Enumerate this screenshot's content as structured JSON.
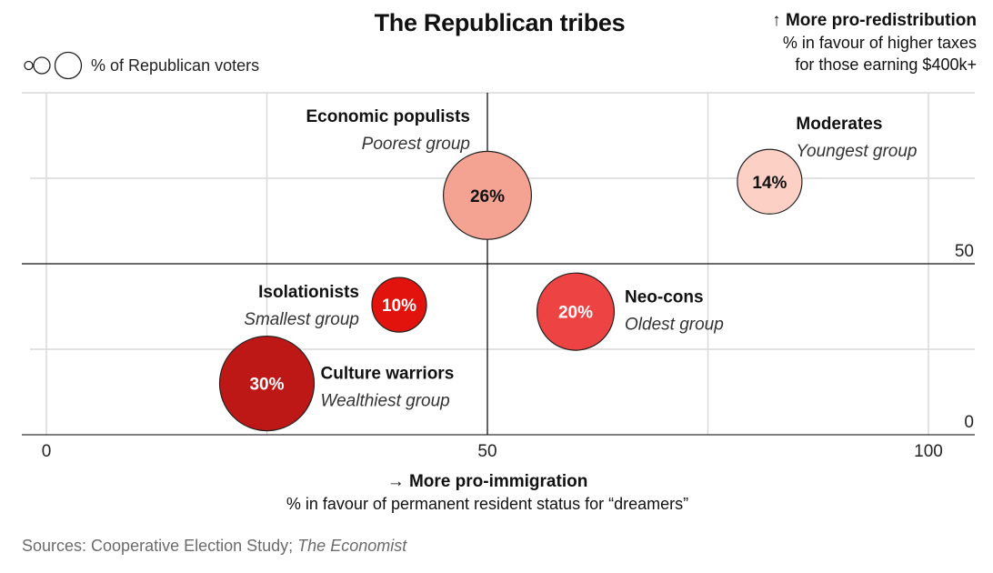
{
  "chart_data": {
    "type": "scatter",
    "title": "The Republican tribes",
    "size_legend": "% of Republican voters",
    "x_axis": {
      "title": "More pro-immigration",
      "subtitle": "% in favour of permanent resident status for “dreamers”",
      "range": [
        0,
        100
      ],
      "ticks": [
        "0",
        "50",
        "100"
      ]
    },
    "y_axis": {
      "title": "More pro-redistribution",
      "subtitle_line1": "% in favour of higher taxes",
      "subtitle_line2": "for those earning $400k+",
      "range": [
        0,
        100
      ],
      "ticks": [
        "0",
        "50"
      ]
    },
    "reference_lines": {
      "x": 50,
      "y": 50
    },
    "grid": true,
    "points": [
      {
        "name": "Economic populists",
        "note": "Poorest group",
        "x": 50,
        "y": 70,
        "share": 26,
        "label": "26%",
        "color": "#f4a393",
        "text_color": "#111111"
      },
      {
        "name": "Moderates",
        "note": "Youngest group",
        "x": 82,
        "y": 74,
        "share": 14,
        "label": "14%",
        "color": "#fdd0c6",
        "text_color": "#111111"
      },
      {
        "name": "Isolationists",
        "note": "Smallest group",
        "x": 40,
        "y": 38,
        "share": 10,
        "label": "10%",
        "color": "#e2130d",
        "text_color": "#ffffff"
      },
      {
        "name": "Neo-cons",
        "note": "Oldest group",
        "x": 60,
        "y": 36,
        "share": 20,
        "label": "20%",
        "color": "#ed4443",
        "text_color": "#ffffff"
      },
      {
        "name": "Culture warriors",
        "note": "Wealthiest group",
        "x": 25,
        "y": 15,
        "share": 30,
        "label": "30%",
        "color": "#bd1815",
        "text_color": "#ffffff"
      }
    ]
  },
  "source": {
    "text": "Sources: Cooperative Election Study; ",
    "italic": "The Economist"
  }
}
